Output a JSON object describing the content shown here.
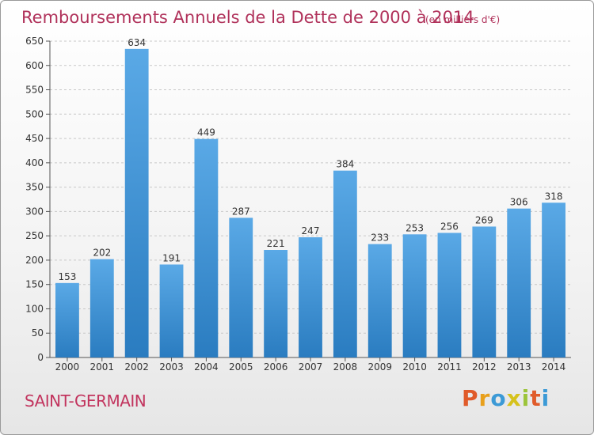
{
  "chart_data": {
    "type": "bar",
    "title": "Remboursements Annuels de la Dette de 2000 à 2014",
    "unit_note": "(en milliers d'€)",
    "categories": [
      "2000",
      "2001",
      "2002",
      "2003",
      "2004",
      "2005",
      "2006",
      "2007",
      "2008",
      "2009",
      "2010",
      "2011",
      "2012",
      "2013",
      "2014"
    ],
    "values": [
      153,
      202,
      634,
      191,
      449,
      287,
      221,
      247,
      384,
      233,
      253,
      256,
      269,
      306,
      318
    ],
    "ylim": [
      0,
      650
    ],
    "yticks": [
      0,
      50,
      100,
      150,
      200,
      250,
      300,
      350,
      400,
      450,
      500,
      550,
      600,
      650
    ],
    "grid": true,
    "bar_color_top": "#5aa9e6",
    "bar_color_bottom": "#2a7cc0"
  },
  "footer": {
    "commune": "SAINT-GERMAIN",
    "brand_letters": [
      "P",
      "r",
      "o",
      "x",
      "i",
      "t",
      "i"
    ],
    "brand_colors": [
      "#e05b2a",
      "#e8a01c",
      "#3c9ad6",
      "#d6c21c",
      "#9cc43a",
      "#e05b2a",
      "#3c9ad6"
    ]
  }
}
